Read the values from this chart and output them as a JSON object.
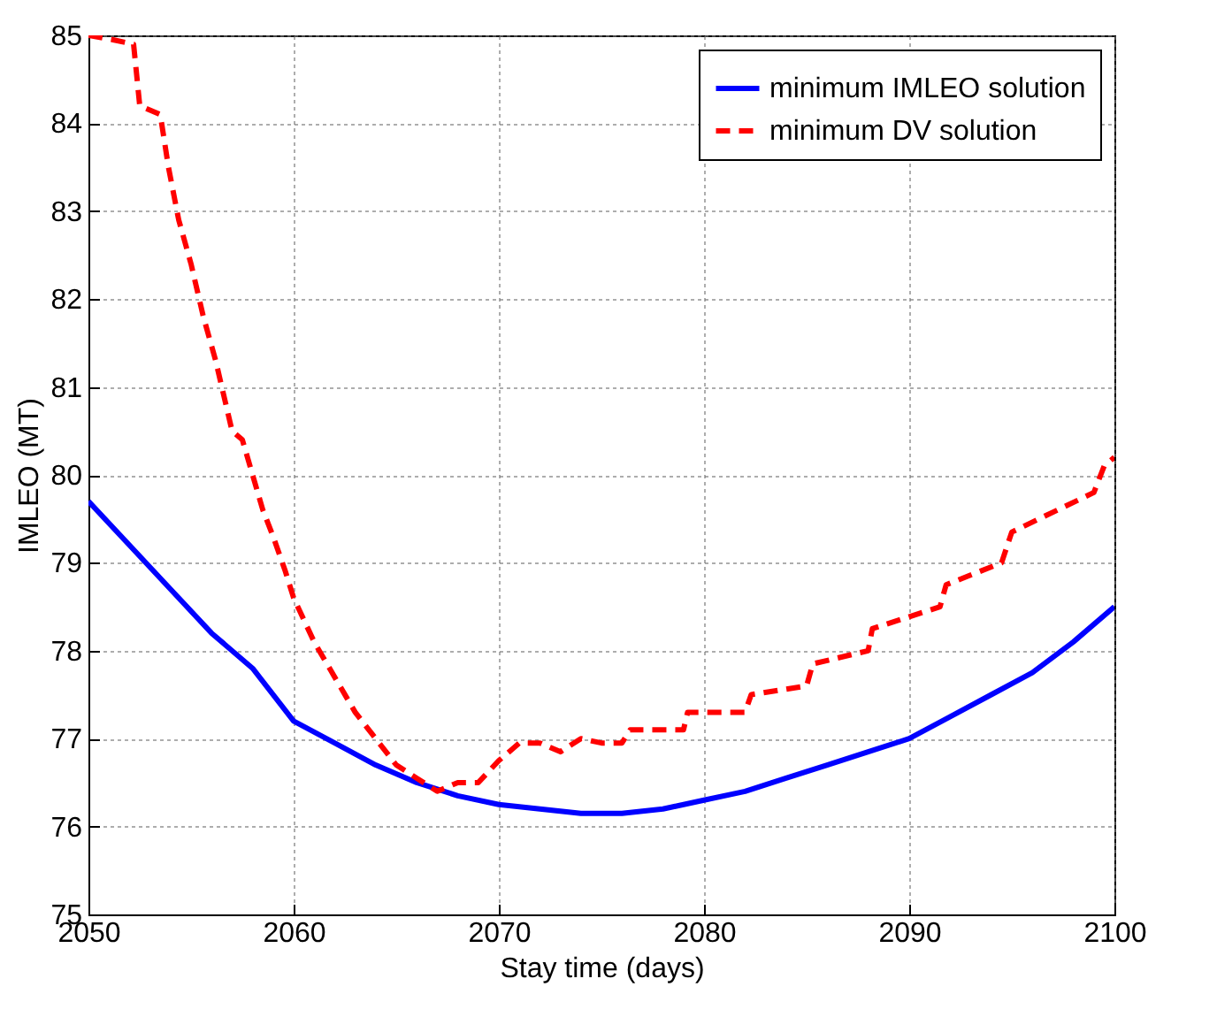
{
  "chart_data": {
    "type": "line",
    "xlabel": "Stay time (days)",
    "ylabel": "IMLEO (MT)",
    "xlim": [
      2050,
      2100
    ],
    "xticks": [
      2050,
      2060,
      2070,
      2080,
      2090,
      2100
    ],
    "ylim": [
      75,
      85
    ],
    "yticks": [
      75,
      76,
      77,
      78,
      79,
      80,
      81,
      82,
      83,
      84,
      85
    ],
    "grid": true,
    "legend": "top right",
    "series": [
      {
        "name": "minimum IMLEO solution",
        "color": "#0000ff",
        "line_style": "solid",
        "x": [
          2050,
          2052,
          2054,
          2056,
          2058,
          2060,
          2062,
          2064,
          2066,
          2068,
          2070,
          2072,
          2074,
          2076,
          2078,
          2080,
          2082,
          2084,
          2086,
          2088,
          2090,
          2092,
          2094,
          2096,
          2098,
          2100
        ],
        "values": [
          79.7,
          79.2,
          78.7,
          78.2,
          77.8,
          77.2,
          76.95,
          76.7,
          76.5,
          76.35,
          76.25,
          76.2,
          76.15,
          76.15,
          76.2,
          76.3,
          76.4,
          76.55,
          76.7,
          76.85,
          77.0,
          77.25,
          77.5,
          77.75,
          78.1,
          78.5
        ]
      },
      {
        "name": "minimum DV solution",
        "color": "#ff0000",
        "line_style": "dashed",
        "x": [
          2050,
          2051.2,
          2052.2,
          2052.5,
          2053.5,
          2053.9,
          2054.4,
          2055,
          2055.6,
          2056.2,
          2057,
          2057.5,
          2058,
          2058.5,
          2059,
          2059.6,
          2060,
          2061,
          2062,
          2063,
          2064,
          2065,
          2066,
          2067,
          2068,
          2069,
          2070,
          2071,
          2072,
          2073,
          2074,
          2075,
          2076,
          2076.4,
          2079,
          2079.2,
          2082,
          2082.3,
          2085,
          2085.3,
          2088,
          2088.2,
          2091.5,
          2091.8,
          2094.5,
          2095,
          2099,
          2099.5,
          2100
        ],
        "values": [
          85,
          84.95,
          84.9,
          84.2,
          84.1,
          83.5,
          82.9,
          82.4,
          81.8,
          81.3,
          80.5,
          80.4,
          80.0,
          79.6,
          79.3,
          78.9,
          78.6,
          78.1,
          77.7,
          77.3,
          77.0,
          76.7,
          76.55,
          76.4,
          76.5,
          76.5,
          76.75,
          76.95,
          76.95,
          76.85,
          77.0,
          76.95,
          76.95,
          77.1,
          77.1,
          77.3,
          77.3,
          77.5,
          77.6,
          77.85,
          78.0,
          78.25,
          78.5,
          78.75,
          79.0,
          79.35,
          79.8,
          80.1,
          80.2
        ]
      }
    ]
  }
}
